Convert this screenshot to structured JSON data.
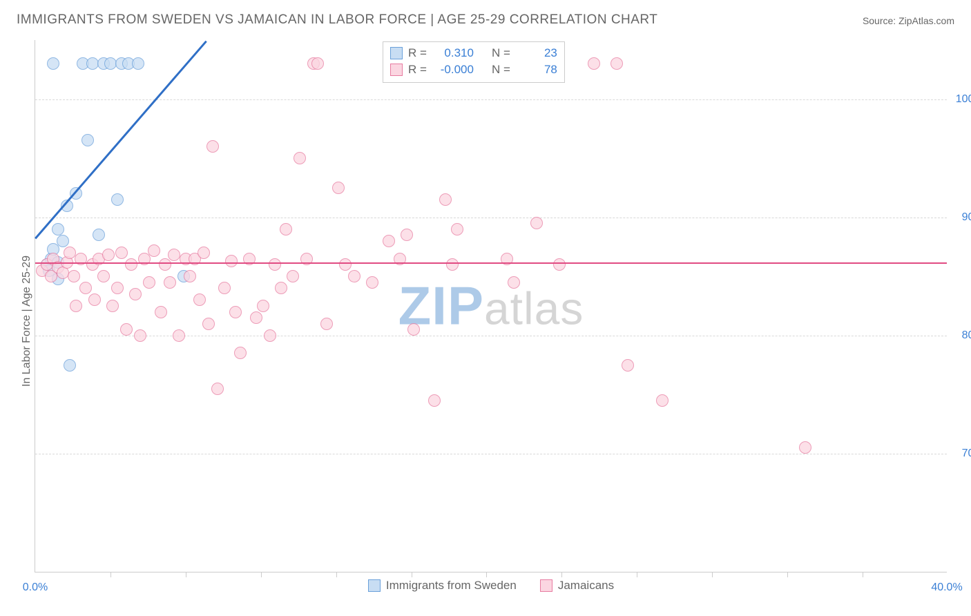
{
  "title": "IMMIGRANTS FROM SWEDEN VS JAMAICAN IN LABOR FORCE | AGE 25-29 CORRELATION CHART",
  "source": "Source: ZipAtlas.com",
  "y_axis_label": "In Labor Force | Age 25-29",
  "watermark": "ZIPatlas",
  "chart": {
    "type": "scatter",
    "xlim": [
      0,
      40
    ],
    "ylim": [
      60,
      105
    ],
    "background_color": "#ffffff",
    "grid_color": "#d8d8d8",
    "axis_color": "#cccccc",
    "point_radius": 9,
    "point_border_width": 1.5,
    "x_ticks": [
      0,
      40
    ],
    "x_tick_labels": [
      "0.0%",
      "40.0%"
    ],
    "x_minor_ticks": [
      3.3,
      6.6,
      9.9,
      13.2,
      16.5,
      19.8,
      23.1,
      26.4,
      29.7,
      33.0,
      36.3
    ],
    "y_ticks": [
      70,
      80,
      90,
      100
    ],
    "y_tick_labels": [
      "70.0%",
      "80.0%",
      "90.0%",
      "100.0%"
    ]
  },
  "series": [
    {
      "id": "sweden",
      "label": "Immigrants from Sweden",
      "fill_color": "#c8ddf3",
      "stroke_color": "#6aa0da",
      "trend_color": "#2f6fc6",
      "R": "0.310",
      "N": "23",
      "r_value_color": "#3a7fd5",
      "n_value_color": "#3a7fd5",
      "trend": {
        "x1": 0.0,
        "y1": 88.3,
        "x2": 7.5,
        "y2": 105.0
      },
      "points": [
        [
          0.5,
          86.0
        ],
        [
          0.6,
          85.5
        ],
        [
          0.7,
          86.5
        ],
        [
          0.8,
          87.3
        ],
        [
          1.0,
          89.0
        ],
        [
          1.0,
          84.8
        ],
        [
          1.2,
          88.0
        ],
        [
          1.4,
          91.0
        ],
        [
          1.8,
          92.0
        ],
        [
          1.5,
          77.5
        ],
        [
          2.3,
          96.5
        ],
        [
          2.1,
          103.0
        ],
        [
          2.5,
          103.0
        ],
        [
          2.8,
          88.5
        ],
        [
          3.0,
          103.0
        ],
        [
          3.3,
          103.0
        ],
        [
          3.6,
          91.5
        ],
        [
          3.8,
          103.0
        ],
        [
          4.1,
          103.0
        ],
        [
          4.5,
          103.0
        ],
        [
          0.8,
          103.0
        ],
        [
          6.5,
          85.0
        ],
        [
          1.0,
          86.2
        ]
      ]
    },
    {
      "id": "jamaicans",
      "label": "Jamaicans",
      "fill_color": "#fbd6e1",
      "stroke_color": "#e77ba0",
      "trend_color": "#e14b82",
      "R": "-0.000",
      "N": "78",
      "r_value_color": "#3a7fd5",
      "n_value_color": "#3a7fd5",
      "trend": {
        "x1": 0.0,
        "y1": 86.2,
        "x2": 40.0,
        "y2": 86.2
      },
      "points": [
        [
          0.3,
          85.5
        ],
        [
          0.5,
          86.0
        ],
        [
          0.7,
          85.0
        ],
        [
          0.8,
          86.5
        ],
        [
          1.0,
          85.8
        ],
        [
          1.2,
          85.3
        ],
        [
          1.4,
          86.2
        ],
        [
          1.5,
          87.0
        ],
        [
          1.7,
          85.0
        ],
        [
          1.8,
          82.5
        ],
        [
          2.0,
          86.5
        ],
        [
          2.2,
          84.0
        ],
        [
          2.5,
          86.0
        ],
        [
          2.6,
          83.0
        ],
        [
          2.8,
          86.5
        ],
        [
          3.0,
          85.0
        ],
        [
          3.2,
          86.8
        ],
        [
          3.4,
          82.5
        ],
        [
          3.6,
          84.0
        ],
        [
          3.8,
          87.0
        ],
        [
          4.0,
          80.5
        ],
        [
          4.2,
          86.0
        ],
        [
          4.4,
          83.5
        ],
        [
          4.6,
          80.0
        ],
        [
          4.8,
          86.5
        ],
        [
          5.0,
          84.5
        ],
        [
          5.2,
          87.2
        ],
        [
          5.5,
          82.0
        ],
        [
          5.7,
          86.0
        ],
        [
          5.9,
          84.5
        ],
        [
          6.1,
          86.8
        ],
        [
          6.3,
          80.0
        ],
        [
          6.6,
          86.5
        ],
        [
          6.8,
          85.0
        ],
        [
          7.0,
          86.5
        ],
        [
          7.2,
          83.0
        ],
        [
          7.4,
          87.0
        ],
        [
          7.6,
          81.0
        ],
        [
          7.8,
          96.0
        ],
        [
          8.0,
          75.5
        ],
        [
          8.3,
          84.0
        ],
        [
          8.6,
          86.3
        ],
        [
          8.8,
          82.0
        ],
        [
          9.0,
          78.5
        ],
        [
          9.4,
          86.5
        ],
        [
          9.7,
          81.5
        ],
        [
          10.0,
          82.5
        ],
        [
          10.3,
          80.0
        ],
        [
          10.5,
          86.0
        ],
        [
          10.8,
          84.0
        ],
        [
          11.0,
          89.0
        ],
        [
          11.3,
          85.0
        ],
        [
          11.6,
          95.0
        ],
        [
          11.9,
          86.5
        ],
        [
          12.2,
          103.0
        ],
        [
          12.4,
          103.0
        ],
        [
          12.8,
          81.0
        ],
        [
          13.3,
          92.5
        ],
        [
          13.6,
          86.0
        ],
        [
          14.0,
          85.0
        ],
        [
          14.8,
          84.5
        ],
        [
          15.5,
          88.0
        ],
        [
          16.0,
          86.5
        ],
        [
          16.3,
          88.5
        ],
        [
          16.6,
          80.5
        ],
        [
          17.5,
          74.5
        ],
        [
          18.0,
          91.5
        ],
        [
          18.3,
          86.0
        ],
        [
          18.5,
          89.0
        ],
        [
          20.7,
          86.5
        ],
        [
          21.0,
          84.5
        ],
        [
          22.0,
          89.5
        ],
        [
          23.0,
          86.0
        ],
        [
          24.5,
          103.0
        ],
        [
          25.5,
          103.0
        ],
        [
          26.0,
          77.5
        ],
        [
          27.5,
          74.5
        ],
        [
          33.8,
          70.5
        ]
      ]
    }
  ],
  "legend_top": {
    "border_color": "#cccccc",
    "r_label": "R =",
    "n_label": "N ="
  },
  "tick_label_color": "#3a7fd5",
  "text_color": "#666666"
}
